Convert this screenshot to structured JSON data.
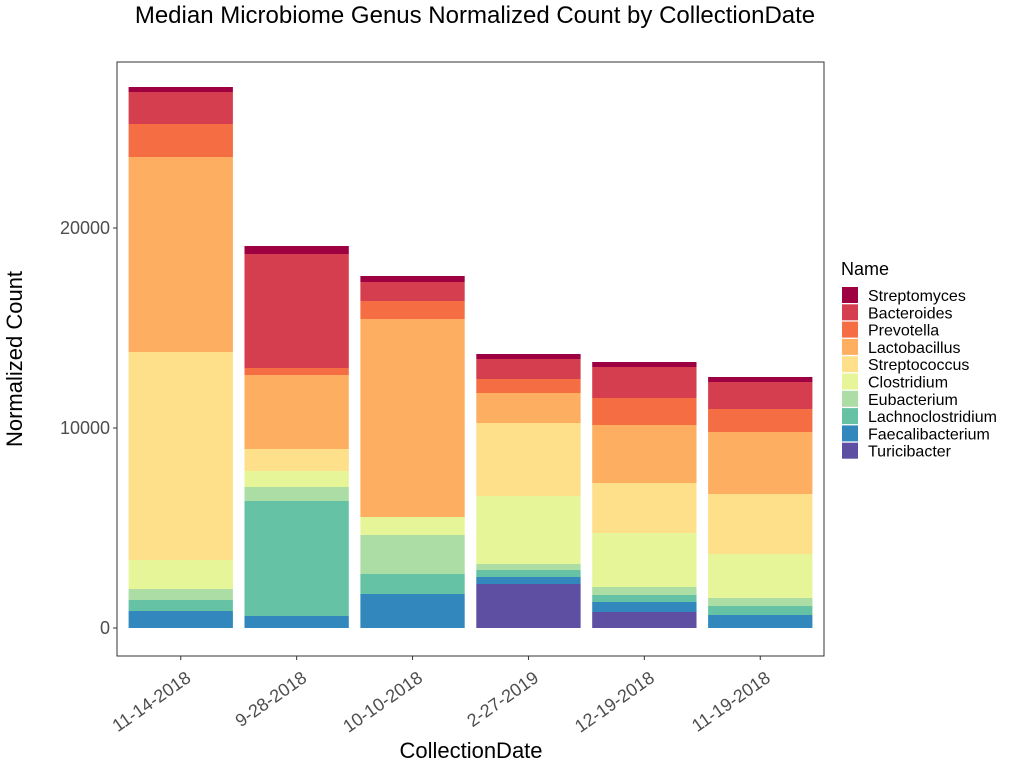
{
  "chart_data": {
    "type": "bar",
    "stacked": true,
    "title": "Median Microbiome Genus Normalized Count by CollectionDate",
    "xlabel": "CollectionDate",
    "ylabel": "Normalized Count",
    "ylim": [
      -1400,
      28300
    ],
    "yticks": [
      0,
      10000,
      20000
    ],
    "grid": false,
    "legend": {
      "title": "Name",
      "position": "right"
    },
    "categories": [
      "11-14-2018",
      "9-28-2018",
      "10-10-2018",
      "2-27-2019",
      "12-19-2018",
      "11-19-2018"
    ],
    "series": [
      {
        "name": "Turicibacter",
        "color": "#5E4FA2",
        "values": [
          0,
          0,
          0,
          2200,
          800,
          0
        ]
      },
      {
        "name": "Faecalibacterium",
        "color": "#3288BD",
        "values": [
          850,
          600,
          1700,
          350,
          500,
          650
        ]
      },
      {
        "name": "Lachnoclostridium",
        "color": "#66C2A5",
        "values": [
          550,
          5750,
          1000,
          350,
          350,
          450
        ]
      },
      {
        "name": "Eubacterium",
        "color": "#ABDDA4",
        "values": [
          550,
          700,
          1950,
          300,
          400,
          400
        ]
      },
      {
        "name": "Clostridium",
        "color": "#E6F598",
        "values": [
          1450,
          800,
          900,
          3400,
          2700,
          2200
        ]
      },
      {
        "name": "Streptococcus",
        "color": "#FEE08B",
        "values": [
          10400,
          1100,
          0,
          3650,
          2500,
          3000
        ]
      },
      {
        "name": "Lactobacillus",
        "color": "#FDAE61",
        "values": [
          9750,
          3700,
          9900,
          1500,
          2900,
          3100
        ]
      },
      {
        "name": "Prevotella",
        "color": "#F46D43",
        "values": [
          1650,
          350,
          900,
          700,
          1350,
          1150
        ]
      },
      {
        "name": "Bacteroides",
        "color": "#D53E4F",
        "values": [
          1600,
          5700,
          950,
          1000,
          1550,
          1350
        ]
      },
      {
        "name": "Streptomyces",
        "color": "#9E0142",
        "values": [
          250,
          400,
          300,
          250,
          250,
          250
        ]
      }
    ]
  }
}
